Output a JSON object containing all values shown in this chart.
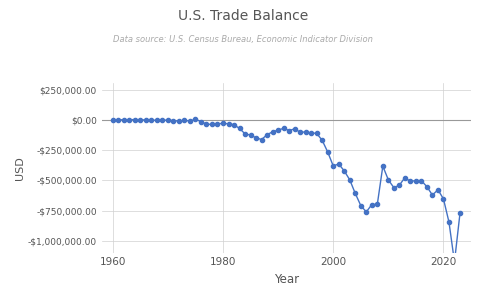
{
  "title": "U.S. Trade Balance",
  "subtitle": "Data source: U.S. Census Bureau, Economic Indicator Division",
  "xlabel": "Year",
  "ylabel": "USD",
  "line_color": "#4472C4",
  "marker_color": "#4472C4",
  "zero_line_color": "#999999",
  "background_color": "#ffffff",
  "years": [
    1960,
    1961,
    1962,
    1963,
    1964,
    1965,
    1966,
    1967,
    1968,
    1969,
    1970,
    1971,
    1972,
    1973,
    1974,
    1975,
    1976,
    1977,
    1978,
    1979,
    1980,
    1981,
    1982,
    1983,
    1984,
    1985,
    1986,
    1987,
    1988,
    1989,
    1990,
    1991,
    1992,
    1993,
    1994,
    1995,
    1996,
    1997,
    1998,
    1999,
    2000,
    2001,
    2002,
    2003,
    2004,
    2005,
    2006,
    2007,
    2008,
    2009,
    2010,
    2011,
    2012,
    2013,
    2014,
    2015,
    2016,
    2017,
    2018,
    2019,
    2020,
    2021,
    2022,
    2023
  ],
  "values": [
    3900,
    5570,
    4520,
    5224,
    6810,
    4951,
    3817,
    3800,
    -627,
    607,
    2603,
    -2260,
    -6416,
    911,
    -5505,
    8903,
    -9483,
    -31091,
    -33947,
    -27568,
    -25483,
    -27975,
    -36441,
    -67102,
    -112483,
    -122173,
    -145081,
    -159557,
    -118534,
    -95389,
    -80864,
    -65967,
    -84501,
    -70281,
    -98493,
    -96384,
    -104065,
    -108273,
    -166140,
    -263168,
    -378732,
    -362953,
    -420367,
    -494813,
    -607730,
    -708588,
    -761721,
    -700258,
    -698338,
    -380952,
    -494685,
    -559785,
    -539523,
    -476384,
    -508119,
    -500369,
    -502025,
    -551688,
    -621669,
    -576861,
    -653139,
    -845380,
    -1177116,
    -773437
  ],
  "xlim": [
    1958,
    2025
  ],
  "ylim": [
    -1100000,
    310000
  ],
  "yticks": [
    250000,
    0,
    -250000,
    -500000,
    -750000,
    -1000000
  ],
  "xticks": [
    1960,
    1980,
    2000,
    2020
  ]
}
